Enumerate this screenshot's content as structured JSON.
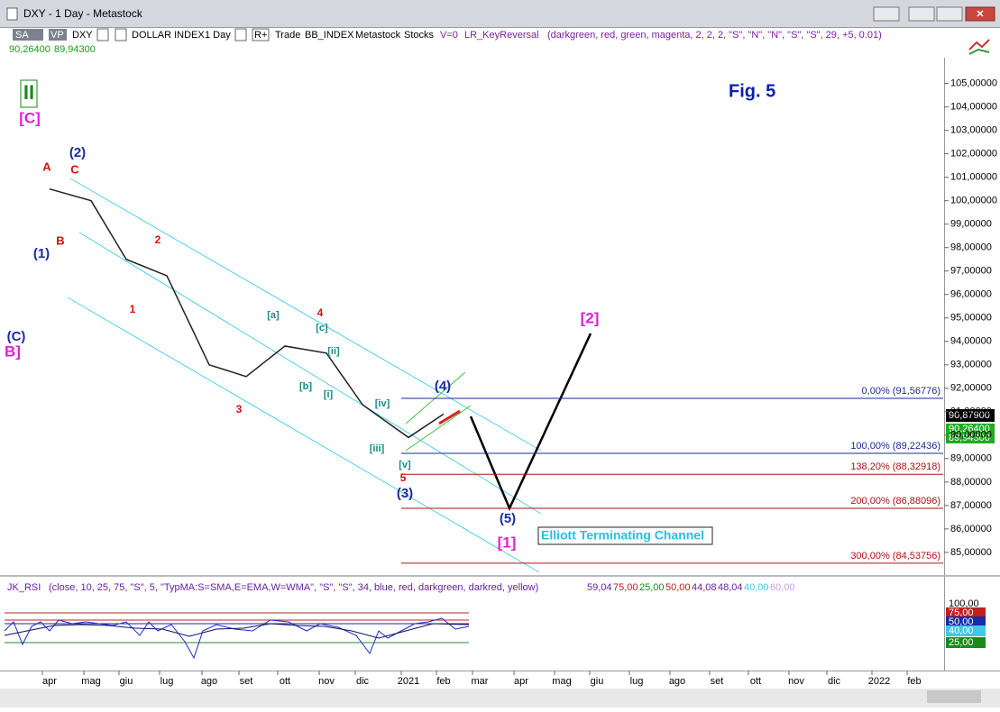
{
  "window": {
    "title": "DXY - 1 Day - Metastock"
  },
  "toolbar": {
    "sa": "SA",
    "vp": "VP",
    "symbol": "DXY",
    "name": "DOLLAR INDEX",
    "period": "1 Day",
    "r": "R+",
    "trade": "Trade",
    "index": "BB_INDEX",
    "source": "Metastock",
    "kind": "Stocks",
    "v": "V=0",
    "expert": "LR_KeyReversal",
    "params": "(darkgreen, red, green, magenta, 2, 2, 2, \"S\", \"N\", \"N\", \"S\", \"S\", 29, +5, 0.01)"
  },
  "quotes": [
    "90,26400",
    "89,94300"
  ],
  "figure": "Fig. 5",
  "channel_label": "Elliott Terminating Channel",
  "price_boxes": [
    "90,87900",
    "90,26400",
    "89,94300"
  ],
  "chart_data": {
    "type": "line",
    "categories": [
      "apr",
      "mag",
      "giu",
      "lug",
      "ago",
      "set",
      "ott",
      "nov",
      "dic",
      "2021",
      "feb",
      "mar",
      "apr",
      "mag",
      "giu",
      "lug",
      "ago",
      "set",
      "ott",
      "nov",
      "dic",
      "2022",
      "feb"
    ],
    "series": [
      {
        "name": "DXY",
        "color": "#202020",
        "values": [
          100.5,
          100.0,
          97.5,
          96.8,
          93.0,
          92.5,
          93.8,
          93.5,
          91.3,
          89.9,
          90.9,
          null,
          null,
          null,
          null,
          null,
          null,
          null,
          null,
          null,
          null,
          null,
          null
        ]
      }
    ],
    "ylim": [
      84.15,
      106.1
    ],
    "yticks": [
      {
        "value": 85,
        "label": "85,00000"
      },
      {
        "value": 86,
        "label": "86,00000"
      },
      {
        "value": 87,
        "label": "87,00000"
      },
      {
        "value": 88,
        "label": "88,00000"
      },
      {
        "value": 89,
        "label": "89,00000"
      },
      {
        "value": 90,
        "label": "90,00000"
      },
      {
        "value": 91,
        "label": "91,00000"
      },
      {
        "value": 92,
        "label": "92,00000"
      },
      {
        "value": 93,
        "label": "93,00000"
      },
      {
        "value": 94,
        "label": "94,00000"
      },
      {
        "value": 95,
        "label": "95,00000"
      },
      {
        "value": 96,
        "label": "96,00000"
      },
      {
        "value": 97,
        "label": "97,00000"
      },
      {
        "value": 98,
        "label": "98,00000"
      },
      {
        "value": 99,
        "label": "99,00000"
      },
      {
        "value": 100,
        "label": "100,00000"
      },
      {
        "value": 101,
        "label": "101,00000"
      },
      {
        "value": 102,
        "label": "102,00000"
      },
      {
        "value": 103,
        "label": "103,00000"
      },
      {
        "value": 104,
        "label": "104,00000"
      },
      {
        "value": 105,
        "label": "105,00000"
      }
    ],
    "fib_levels": {
      "values": [
        91.56776,
        89.22436,
        88.32918,
        86.88096,
        84.53756
      ],
      "value_labels": [
        "0,00% (91,56776)",
        "100,00% (89,22436)",
        "138,20% (88,32918)",
        "200,00% (86,88096)",
        "300,00% (84,53756)"
      ]
    },
    "wave_labels": [
      "II",
      "[C]",
      "(2)",
      "A",
      "C",
      "B",
      "(1)",
      "2",
      "1",
      "(C)",
      "B]",
      "[a]",
      "4",
      "[c]",
      "[ii]",
      "[b]",
      "[i]",
      "[iv]",
      "3",
      "(4)",
      "[iii]",
      "[v]",
      "5",
      "(3)",
      "(5)",
      "[1]",
      "[2]"
    ]
  },
  "rsi": {
    "label": "JK_RSI",
    "params": "(close, 10, 25, 75, \"S\", 5, \"TypMA:S=SMA,E=EMA,W=WMA\", \"S\", \"S\", 34, blue, red, darkgreen, darkred, yellow)",
    "readings": [
      "59,04",
      "75,00",
      "25,00",
      "50,00",
      "44,08",
      "48,04",
      "40,00",
      "60,00"
    ],
    "axis": [
      "100,00",
      "75,00",
      "50,00",
      "40,00",
      "25,00"
    ]
  }
}
